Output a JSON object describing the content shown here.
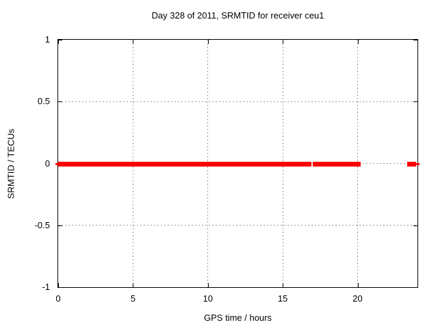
{
  "window": {
    "background": "#ffffff",
    "text_color": "#000000"
  },
  "chart_data": {
    "type": "scatter",
    "title": "Day 328 of 2011, SRMTID for receiver ceu1",
    "xlabel": "GPS time / hours",
    "ylabel": "SRMTID / TECUs",
    "xlim": [
      0,
      24
    ],
    "ylim": [
      -1,
      1
    ],
    "xticks": {
      "values": [
        0,
        5,
        10,
        15,
        20
      ],
      "labels": [
        "0",
        "5",
        "10",
        "15",
        "20"
      ]
    },
    "yticks": {
      "values": [
        1,
        0.5,
        0,
        -0.5,
        -1
      ],
      "labels": [
        "1",
        "0.5",
        "0",
        "-0.5",
        "-1"
      ]
    },
    "grid": {
      "x_values": [
        5,
        10,
        15,
        20
      ],
      "y_values": [
        0.5,
        0,
        -0.5
      ],
      "style": "dashed",
      "color": "#999999"
    },
    "border_color": "#000000",
    "legend": "none",
    "series": [
      {
        "name": "SRMTID",
        "marker": "filled-square",
        "color": "#ff0000",
        "y_value": 0,
        "segments_hours": [
          [
            0,
            16.93
          ],
          [
            17.02,
            20.21
          ],
          [
            23.31,
            23.91
          ]
        ],
        "edge_marker_hours": [
          0,
          24
        ]
      }
    ]
  }
}
